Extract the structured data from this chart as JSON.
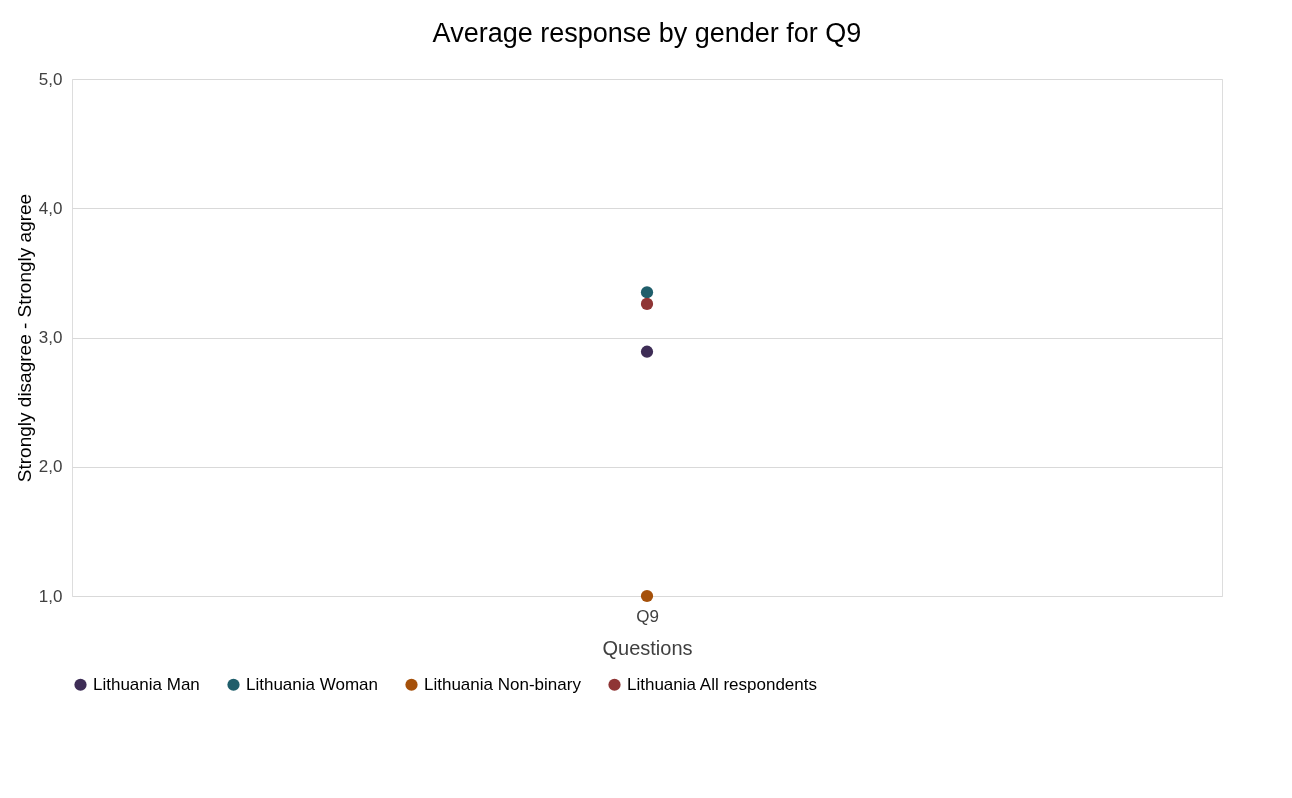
{
  "chart_data": {
    "type": "scatter",
    "title": "Average response by gender for Q9",
    "xlabel": "Questions",
    "ylabel": "Strongly disagree - Strongly agree",
    "categories": [
      "Q9"
    ],
    "series": [
      {
        "name": "Lithuania Man",
        "color": "#3e2d56",
        "values": [
          2.89
        ]
      },
      {
        "name": "Lithuania Woman",
        "color": "#1f5e6b",
        "values": [
          3.35
        ]
      },
      {
        "name": "Lithuania Non-binary",
        "color": "#a5500a",
        "values": [
          1.0
        ]
      },
      {
        "name": "Lithuania All respondents",
        "color": "#8f3535",
        "values": [
          3.26
        ]
      }
    ],
    "ylim": [
      1,
      5
    ],
    "yticks": [
      {
        "value": 1,
        "label": "1,0"
      },
      {
        "value": 2,
        "label": "2,0"
      },
      {
        "value": 3,
        "label": "3,0"
      },
      {
        "value": 4,
        "label": "4,0"
      },
      {
        "value": 5,
        "label": "5,0"
      }
    ],
    "grid": "y",
    "legend": "bottom",
    "marker": "circle"
  }
}
